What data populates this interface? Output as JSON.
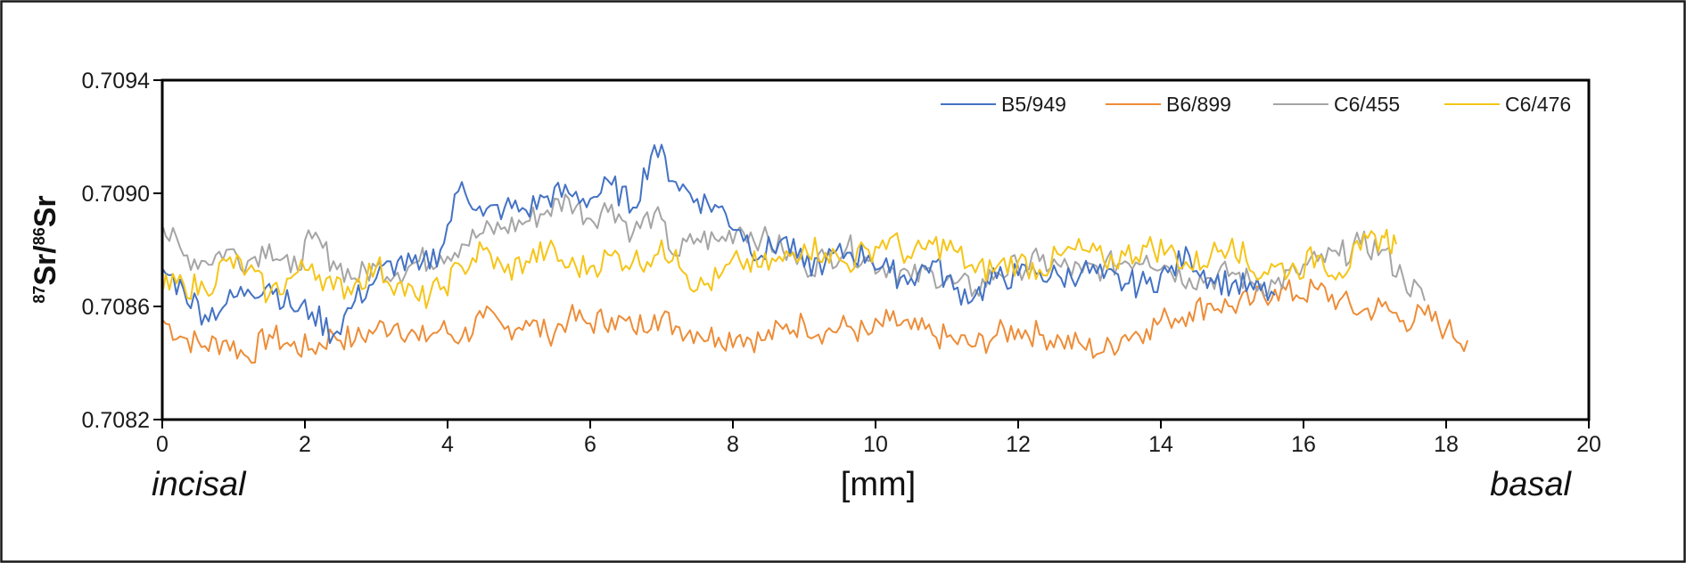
{
  "chart_data": {
    "type": "line",
    "title": "",
    "ylabel": {
      "iso1_mass": "87",
      "el1": "Sr",
      "slash": "/",
      "iso2_mass": "86",
      "el2": "Sr"
    },
    "xlabel": "[mm]",
    "x_left_annotation": "incisal",
    "x_right_annotation": "basal",
    "xlim": [
      0,
      20
    ],
    "ylim": [
      0.7082,
      0.7094
    ],
    "xticks": [
      0,
      2,
      4,
      6,
      8,
      10,
      12,
      14,
      16,
      18,
      20
    ],
    "yticks": [
      "0.7082",
      "0.7086",
      "0.7090",
      "0.7094"
    ],
    "grid": false,
    "legend_position": "top-right",
    "series": [
      {
        "name": "B5/949",
        "color": "#4472c4",
        "x": [
          0,
          0.3,
          0.6,
          0.9,
          1.2,
          1.5,
          1.8,
          2.1,
          2.4,
          2.7,
          3.0,
          3.3,
          3.6,
          3.9,
          4.2,
          4.5,
          4.8,
          5.1,
          5.4,
          5.7,
          6.0,
          6.3,
          6.6,
          6.9,
          7.2,
          7.5,
          7.8,
          8.1,
          8.4,
          8.7,
          9.0,
          9.3,
          9.6,
          9.9,
          10.2,
          10.5,
          10.8,
          11.1,
          11.4,
          11.7,
          12.0,
          12.3,
          12.6,
          12.9,
          13.2,
          13.5,
          13.8,
          14.1,
          14.4,
          14.7,
          15.0,
          15.3,
          15.6
        ],
        "y": [
          0.70873,
          0.70866,
          0.70857,
          0.70861,
          0.70866,
          0.70868,
          0.7086,
          0.70858,
          0.7085,
          0.70862,
          0.7087,
          0.70876,
          0.70873,
          0.7088,
          0.70904,
          0.70892,
          0.70895,
          0.70894,
          0.70899,
          0.709,
          0.70898,
          0.70903,
          0.70895,
          0.70917,
          0.70904,
          0.70898,
          0.70895,
          0.70887,
          0.70878,
          0.70884,
          0.70874,
          0.70876,
          0.70879,
          0.70878,
          0.70872,
          0.7087,
          0.70876,
          0.70866,
          0.70864,
          0.7087,
          0.70871,
          0.70872,
          0.7087,
          0.70873,
          0.7087,
          0.70868,
          0.70868,
          0.70872,
          0.70878,
          0.7087,
          0.70868,
          0.70866,
          0.70864
        ]
      },
      {
        "name": "B6/899",
        "color": "#ed8d38",
        "x": [
          0,
          0.3,
          0.6,
          0.9,
          1.2,
          1.5,
          1.8,
          2.1,
          2.4,
          2.7,
          3.0,
          3.3,
          3.6,
          3.9,
          4.2,
          4.5,
          4.8,
          5.1,
          5.4,
          5.7,
          6.0,
          6.3,
          6.6,
          6.9,
          7.2,
          7.5,
          7.8,
          8.1,
          8.4,
          8.7,
          9.0,
          9.3,
          9.6,
          9.9,
          10.2,
          10.5,
          10.8,
          11.1,
          11.4,
          11.7,
          12.0,
          12.3,
          12.6,
          12.9,
          13.2,
          13.5,
          13.8,
          14.1,
          14.4,
          14.7,
          15.0,
          15.3,
          15.6,
          15.9,
          16.2,
          16.5,
          16.8,
          17.1,
          17.4,
          17.7,
          18.0,
          18.3
        ],
        "y": [
          0.70855,
          0.70849,
          0.70846,
          0.70848,
          0.70842,
          0.7085,
          0.70846,
          0.70845,
          0.7085,
          0.70848,
          0.70852,
          0.70854,
          0.70848,
          0.70852,
          0.70849,
          0.70856,
          0.70852,
          0.70855,
          0.7085,
          0.70856,
          0.70854,
          0.70856,
          0.70852,
          0.70857,
          0.70853,
          0.70851,
          0.70849,
          0.7085,
          0.70848,
          0.70852,
          0.70854,
          0.70851,
          0.70853,
          0.7085,
          0.70855,
          0.70852,
          0.7085,
          0.70848,
          0.70846,
          0.7085,
          0.70852,
          0.7085,
          0.70848,
          0.70846,
          0.70844,
          0.7085,
          0.70852,
          0.70856,
          0.70858,
          0.70861,
          0.7086,
          0.70862,
          0.70866,
          0.70864,
          0.70866,
          0.70862,
          0.70858,
          0.7086,
          0.70855,
          0.70857,
          0.70852,
          0.70848
        ]
      },
      {
        "name": "C6/455",
        "color": "#a5a5a5",
        "x": [
          0,
          0.3,
          0.6,
          0.9,
          1.2,
          1.5,
          1.8,
          2.1,
          2.4,
          2.7,
          3.0,
          3.3,
          3.6,
          3.9,
          4.2,
          4.5,
          4.8,
          5.1,
          5.4,
          5.7,
          6.0,
          6.3,
          6.6,
          6.9,
          7.2,
          7.5,
          7.8,
          8.1,
          8.4,
          8.7,
          9.0,
          9.3,
          9.6,
          9.9,
          10.2,
          10.5,
          10.8,
          11.1,
          11.4,
          11.7,
          12.0,
          12.3,
          12.6,
          12.9,
          13.2,
          13.5,
          13.8,
          14.1,
          14.4,
          14.7,
          15.0,
          15.3,
          15.6,
          15.9,
          16.2,
          16.5,
          16.8,
          17.1,
          17.4,
          17.7
        ],
        "y": [
          0.70888,
          0.70878,
          0.70876,
          0.7088,
          0.70876,
          0.70882,
          0.70872,
          0.70884,
          0.70876,
          0.7087,
          0.70874,
          0.70872,
          0.70876,
          0.70878,
          0.70882,
          0.70886,
          0.70888,
          0.7089,
          0.70894,
          0.70898,
          0.70891,
          0.70896,
          0.70886,
          0.70893,
          0.70878,
          0.70884,
          0.70883,
          0.70888,
          0.70884,
          0.7088,
          0.70874,
          0.70877,
          0.70881,
          0.70876,
          0.70874,
          0.7087,
          0.70872,
          0.70868,
          0.70866,
          0.70872,
          0.70874,
          0.70876,
          0.70874,
          0.70872,
          0.70874,
          0.70876,
          0.70878,
          0.70874,
          0.7087,
          0.7087,
          0.70872,
          0.70868,
          0.70868,
          0.70872,
          0.70876,
          0.70878,
          0.70882,
          0.7088,
          0.7087,
          0.70862
        ]
      },
      {
        "name": "C6/476",
        "color": "#f5c518",
        "x": [
          0,
          0.3,
          0.6,
          0.9,
          1.2,
          1.5,
          1.8,
          2.1,
          2.4,
          2.7,
          3.0,
          3.3,
          3.6,
          3.9,
          4.2,
          4.5,
          4.8,
          5.1,
          5.4,
          5.7,
          6.0,
          6.3,
          6.6,
          6.9,
          7.2,
          7.5,
          7.8,
          8.1,
          8.4,
          8.7,
          9.0,
          9.3,
          9.6,
          9.9,
          10.2,
          10.5,
          10.8,
          11.1,
          11.4,
          11.7,
          12.0,
          12.3,
          12.6,
          12.9,
          13.2,
          13.5,
          13.8,
          14.1,
          14.4,
          14.7,
          15.0,
          15.3,
          15.6,
          15.9,
          16.2,
          16.5,
          16.8,
          17.1,
          17.3
        ],
        "y": [
          0.70866,
          0.70868,
          0.70866,
          0.70876,
          0.70873,
          0.70864,
          0.7087,
          0.70875,
          0.70866,
          0.70868,
          0.70874,
          0.70868,
          0.70862,
          0.70866,
          0.70874,
          0.7088,
          0.70872,
          0.70876,
          0.7088,
          0.70874,
          0.70874,
          0.70878,
          0.70876,
          0.70878,
          0.7088,
          0.70866,
          0.7087,
          0.70876,
          0.70874,
          0.70876,
          0.70882,
          0.70879,
          0.70875,
          0.7088,
          0.70884,
          0.70877,
          0.70882,
          0.7088,
          0.70872,
          0.70874,
          0.70876,
          0.70873,
          0.70878,
          0.7088,
          0.70876,
          0.70878,
          0.70881,
          0.7088,
          0.70874,
          0.70878,
          0.70884,
          0.70872,
          0.70874,
          0.70873,
          0.70878,
          0.70872,
          0.7088,
          0.70885,
          0.70882
        ]
      }
    ]
  }
}
